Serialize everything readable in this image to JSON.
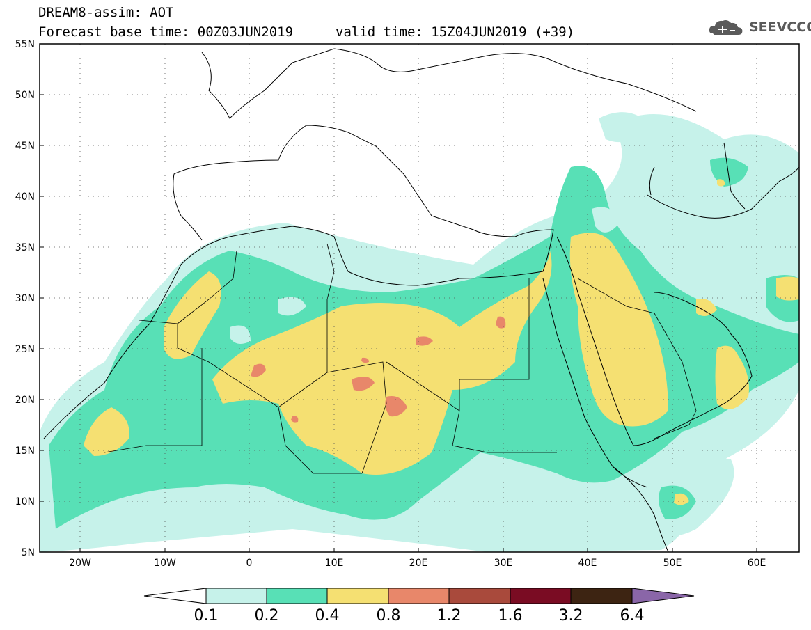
{
  "header": {
    "title": "DREAM8-assim: AOT",
    "base_time": "Forecast base time: 00Z03JUN2019",
    "valid_time": "valid time: 15Z04JUN2019 (+39)"
  },
  "logo": {
    "text": "SEEVCCC",
    "icon": "cloud-logo-icon"
  },
  "map": {
    "lon_range": [
      -25,
      65
    ],
    "lat_range": [
      5,
      55
    ],
    "lat_labels": [
      "55N",
      "50N",
      "45N",
      "40N",
      "35N",
      "30N",
      "25N",
      "20N",
      "15N",
      "10N",
      "5N"
    ],
    "lon_labels": [
      "20W",
      "10W",
      "0",
      "10E",
      "20E",
      "30E",
      "40E",
      "50E",
      "60E"
    ]
  },
  "colorbar": {
    "labels": [
      "0.1",
      "0.2",
      "0.4",
      "0.8",
      "1.2",
      "1.6",
      "3.2",
      "6.4"
    ],
    "colors": [
      "#ffffff",
      "#c6f2ea",
      "#58e0b6",
      "#f5e072",
      "#e8876a",
      "#a94a3c",
      "#7a0c23",
      "#3d2412",
      "#8a66a8"
    ]
  }
}
